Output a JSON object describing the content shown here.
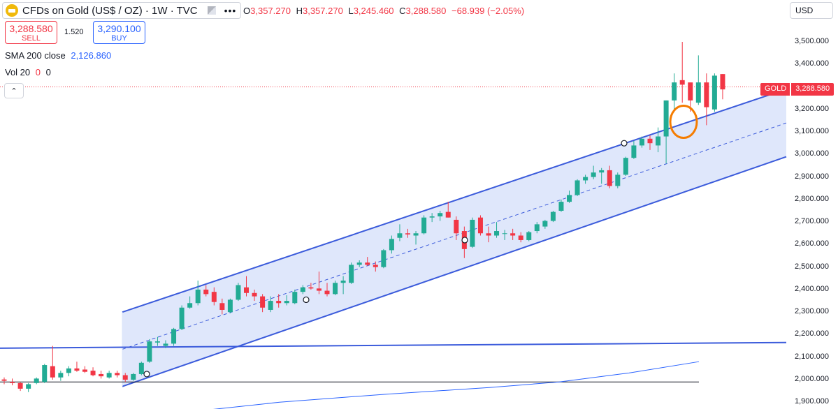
{
  "header": {
    "title": "CFDs on Gold (US$ / OZ) · 1W · TVC",
    "ohlc": {
      "o_label": "O",
      "o": "3,357.270",
      "h_label": "H",
      "h": "3,357.270",
      "l_label": "L",
      "l": "3,245.460",
      "c_label": "C",
      "c": "3,288.580",
      "change": "−68.939 (−2.05%)"
    },
    "more_label": "•••"
  },
  "trade": {
    "sell_price": "3,288.580",
    "sell_label": "SELL",
    "spread": "1.520",
    "buy_price": "3,290.100",
    "buy_label": "BUY"
  },
  "indicators": {
    "sma_label": "SMA 200 close",
    "sma_value": "2,126.860",
    "vol_label": "Vol 20",
    "vol_a": "0",
    "vol_b": "0"
  },
  "currency": "USD",
  "price_axis": {
    "ticks": [
      "3,500.000",
      "3,400.000",
      "3,300.000",
      "3,200.000",
      "3,100.000",
      "3,000.000",
      "2,900.000",
      "2,800.000",
      "2,700.000",
      "2,600.000",
      "2,500.000",
      "2,400.000",
      "2,300.000",
      "2,200.000",
      "2,100.000",
      "2,000.000",
      "1,900.000"
    ]
  },
  "last_price_tag": {
    "symbol": "GOLD",
    "value": "3,288.580"
  },
  "colors": {
    "up": "#22ab94",
    "down": "#f23645",
    "channel": "#3b5bdb",
    "channel_fill": "#dbe4fb",
    "highlight": "#f57c00"
  },
  "chart_data": {
    "type": "candlestick",
    "ylim": [
      1880,
      3560
    ],
    "candles": [
      [
        2001,
        2010,
        1980,
        1995
      ],
      [
        1990,
        2005,
        1975,
        1985
      ],
      [
        1985,
        1990,
        1950,
        1960
      ],
      [
        1960,
        1985,
        1945,
        1980
      ],
      [
        1985,
        2010,
        1980,
        2005
      ],
      [
        1990,
        2070,
        1985,
        2065
      ],
      [
        2060,
        2150,
        2000,
        2010
      ],
      [
        2010,
        2040,
        1995,
        2030
      ],
      [
        2030,
        2060,
        2015,
        2050
      ],
      [
        2050,
        2080,
        2035,
        2040
      ],
      [
        2045,
        2060,
        2030,
        2035
      ],
      [
        2040,
        2055,
        2015,
        2020
      ],
      [
        2025,
        2040,
        2005,
        2015
      ],
      [
        2010,
        2040,
        2005,
        2030
      ],
      [
        2030,
        2040,
        2010,
        2020
      ],
      [
        2020,
        2030,
        1990,
        2000
      ],
      [
        2000,
        2030,
        1995,
        2025
      ],
      [
        2025,
        2080,
        2020,
        2075
      ],
      [
        2080,
        2180,
        2075,
        2170
      ],
      [
        2165,
        2190,
        2150,
        2170
      ],
      [
        2150,
        2175,
        2140,
        2160
      ],
      [
        2160,
        2230,
        2150,
        2225
      ],
      [
        2225,
        2330,
        2220,
        2320
      ],
      [
        2320,
        2370,
        2315,
        2340
      ],
      [
        2340,
        2440,
        2330,
        2400
      ],
      [
        2400,
        2420,
        2370,
        2380
      ],
      [
        2390,
        2410,
        2330,
        2345
      ],
      [
        2340,
        2360,
        2290,
        2310
      ],
      [
        2300,
        2360,
        2295,
        2355
      ],
      [
        2355,
        2430,
        2350,
        2420
      ],
      [
        2410,
        2460,
        2370,
        2385
      ],
      [
        2385,
        2400,
        2350,
        2370
      ],
      [
        2370,
        2380,
        2300,
        2320
      ],
      [
        2310,
        2370,
        2300,
        2350
      ],
      [
        2350,
        2380,
        2320,
        2340
      ],
      [
        2340,
        2375,
        2330,
        2350
      ],
      [
        2340,
        2400,
        2335,
        2390
      ],
      [
        2390,
        2420,
        2380,
        2410
      ],
      [
        2410,
        2430,
        2400,
        2405
      ],
      [
        2405,
        2480,
        2380,
        2395
      ],
      [
        2395,
        2430,
        2370,
        2380
      ],
      [
        2380,
        2440,
        2375,
        2430
      ],
      [
        2430,
        2460,
        2380,
        2440
      ],
      [
        2430,
        2520,
        2425,
        2510
      ],
      [
        2510,
        2530,
        2500,
        2520
      ],
      [
        2520,
        2545,
        2505,
        2510
      ],
      [
        2510,
        2525,
        2480,
        2500
      ],
      [
        2500,
        2580,
        2495,
        2575
      ],
      [
        2575,
        2640,
        2560,
        2625
      ],
      [
        2630,
        2690,
        2615,
        2650
      ],
      [
        2650,
        2670,
        2630,
        2645
      ],
      [
        2640,
        2660,
        2600,
        2650
      ],
      [
        2650,
        2730,
        2645,
        2720
      ],
      [
        2720,
        2740,
        2700,
        2725
      ],
      [
        2725,
        2750,
        2705,
        2740
      ],
      [
        2745,
        2790,
        2720,
        2720
      ],
      [
        2710,
        2725,
        2620,
        2650
      ],
      [
        2660,
        2680,
        2540,
        2580
      ],
      [
        2590,
        2720,
        2585,
        2710
      ],
      [
        2720,
        2730,
        2640,
        2650
      ],
      [
        2650,
        2680,
        2610,
        2640
      ],
      [
        2640,
        2700,
        2630,
        2660
      ],
      [
        2650,
        2665,
        2620,
        2650
      ],
      [
        2650,
        2670,
        2620,
        2640
      ],
      [
        2640,
        2655,
        2610,
        2620
      ],
      [
        2620,
        2660,
        2615,
        2655
      ],
      [
        2660,
        2700,
        2650,
        2690
      ],
      [
        2680,
        2710,
        2670,
        2705
      ],
      [
        2705,
        2750,
        2700,
        2745
      ],
      [
        2750,
        2800,
        2745,
        2790
      ],
      [
        2790,
        2840,
        2785,
        2820
      ],
      [
        2820,
        2890,
        2815,
        2885
      ],
      [
        2885,
        2910,
        2870,
        2900
      ],
      [
        2900,
        2950,
        2890,
        2920
      ],
      [
        2920,
        2940,
        2870,
        2930
      ],
      [
        2930,
        2950,
        2850,
        2860
      ],
      [
        2860,
        2920,
        2850,
        2910
      ],
      [
        2910,
        2990,
        2905,
        2985
      ],
      [
        2985,
        3060,
        2980,
        3040
      ],
      [
        3040,
        3080,
        3030,
        3070
      ],
      [
        3070,
        3085,
        3020,
        3050
      ],
      [
        3040,
        3120,
        3010,
        3080
      ],
      [
        3080,
        3240,
        2960,
        3240
      ],
      [
        3240,
        3360,
        3200,
        3320
      ],
      [
        3330,
        3500,
        3230,
        3310
      ],
      [
        3320,
        3320,
        3190,
        3240
      ],
      [
        3230,
        3440,
        3220,
        3320
      ],
      [
        3320,
        3360,
        3130,
        3210
      ],
      [
        3200,
        3360,
        3190,
        3350
      ],
      [
        3357,
        3357,
        3245,
        3289
      ]
    ]
  }
}
